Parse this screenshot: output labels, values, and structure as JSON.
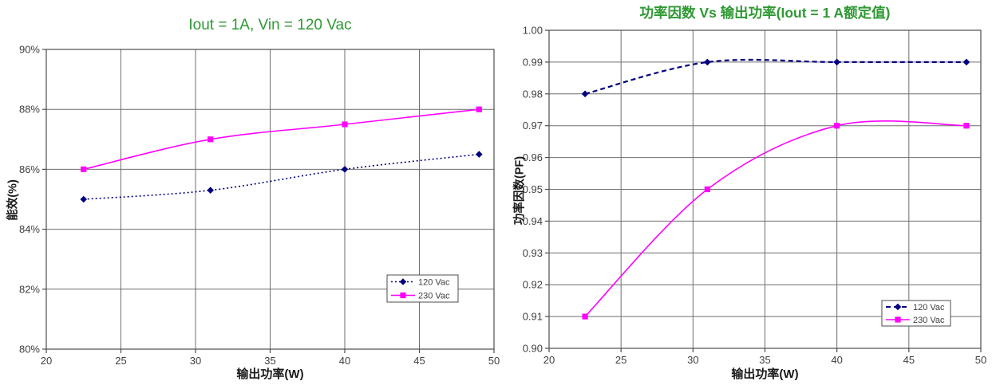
{
  "colors": {
    "background": "#ffffff",
    "title_green": "#2E9933",
    "grid": "#6e6e6e",
    "axis": "#4d4d4d",
    "tick_text": "#404040",
    "series_120vac_navy": "#000080",
    "series_230vac_magenta": "#FF00FF"
  },
  "chart_data": [
    {
      "id": "efficiency-vs-output-power",
      "type": "line",
      "title": "Iout = 1A, Vin = 120 Vac",
      "xlabel": "输出功率(W)",
      "ylabel": "能效(%)",
      "xlim": [
        20,
        50
      ],
      "ylim": [
        80,
        90
      ],
      "grid": true,
      "legend_position": "inside-right-middle",
      "x": [
        22.5,
        31,
        40,
        49
      ],
      "xticks": [
        {
          "value": 20,
          "label": "20"
        },
        {
          "value": 25,
          "label": "25"
        },
        {
          "value": 30,
          "label": "30"
        },
        {
          "value": 35,
          "label": "35"
        },
        {
          "value": 40,
          "label": "40"
        },
        {
          "value": 45,
          "label": "45"
        },
        {
          "value": 50,
          "label": "50"
        }
      ],
      "yticks": [
        {
          "value": 80,
          "label": "80%"
        },
        {
          "value": 82,
          "label": "82%"
        },
        {
          "value": 84,
          "label": "84%"
        },
        {
          "value": 86,
          "label": "86%"
        },
        {
          "value": 88,
          "label": "88%"
        },
        {
          "value": 90,
          "label": "90%"
        }
      ],
      "series": [
        {
          "name": "120 Vac",
          "color": "#000080",
          "line_style": "dotted",
          "marker": "diamond",
          "values": [
            85.0,
            85.3,
            86.0,
            86.5
          ]
        },
        {
          "name": "230 Vac",
          "color": "#FF00FF",
          "line_style": "solid",
          "marker": "square",
          "values": [
            86.0,
            87.0,
            87.5,
            88.0
          ]
        }
      ]
    },
    {
      "id": "power-factor-vs-output-power",
      "type": "line",
      "title": "功率因数 Vs 输出功率(Iout = 1 A额定值)",
      "xlabel": "输出功率(W)",
      "ylabel": "功率因数(PF)",
      "xlim": [
        20,
        50
      ],
      "ylim": [
        0.9,
        1.0
      ],
      "grid": true,
      "legend_position": "inside-right-bottom",
      "x": [
        22.5,
        31,
        40,
        49
      ],
      "xticks": [
        {
          "value": 20,
          "label": "20"
        },
        {
          "value": 25,
          "label": "25"
        },
        {
          "value": 30,
          "label": "30"
        },
        {
          "value": 35,
          "label": "35"
        },
        {
          "value": 40,
          "label": "40"
        },
        {
          "value": 45,
          "label": "45"
        },
        {
          "value": 50,
          "label": "50"
        }
      ],
      "yticks": [
        {
          "value": 0.9,
          "label": "0.90"
        },
        {
          "value": 0.91,
          "label": "0.91"
        },
        {
          "value": 0.92,
          "label": "0.92"
        },
        {
          "value": 0.93,
          "label": "0.93"
        },
        {
          "value": 0.94,
          "label": "0.94"
        },
        {
          "value": 0.95,
          "label": "0.95"
        },
        {
          "value": 0.96,
          "label": "0.96"
        },
        {
          "value": 0.97,
          "label": "0.97"
        },
        {
          "value": 0.98,
          "label": "0.98"
        },
        {
          "value": 0.99,
          "label": "0.99"
        },
        {
          "value": 1.0,
          "label": "1.00"
        }
      ],
      "series": [
        {
          "name": "120 Vac",
          "color": "#000080",
          "line_style": "dashed",
          "marker": "diamond",
          "values": [
            0.98,
            0.99,
            0.99,
            0.99
          ]
        },
        {
          "name": "230 Vac",
          "color": "#FF00FF",
          "line_style": "solid",
          "marker": "square",
          "values": [
            0.91,
            0.95,
            0.97,
            0.97
          ]
        }
      ]
    }
  ]
}
